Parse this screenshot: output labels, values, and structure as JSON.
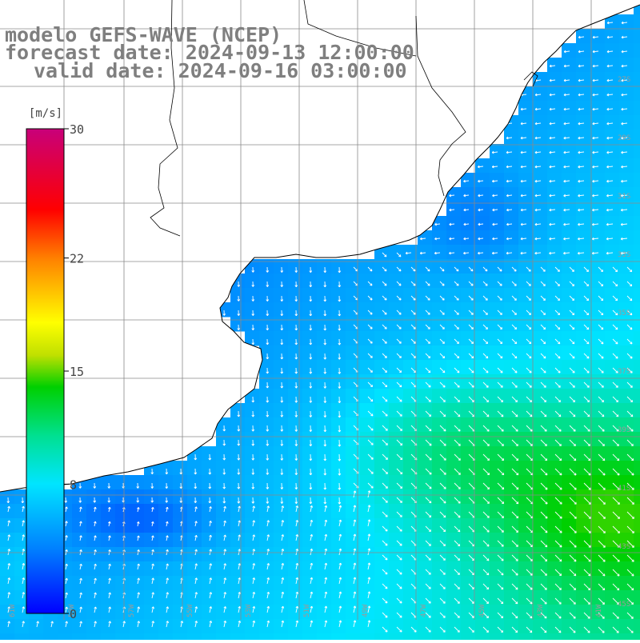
{
  "header": {
    "title": "modelo GEFS-WAVE (NCEP)",
    "forecast": "forecast date: 2024-09-13 12:00:00",
    "valid": "valid date: 2024-09-16 03:00:00"
  },
  "colorbar": {
    "unit": "[m/s]",
    "ticks": [
      {
        "label": "30",
        "value": 30
      },
      {
        "label": "22",
        "value": 22
      },
      {
        "label": "15",
        "value": 15
      },
      {
        "label": "8",
        "value": 8
      },
      {
        "label": "0",
        "value": 0
      }
    ],
    "min": 0,
    "max": 30,
    "stops": [
      {
        "v": 0,
        "c": "#0000ff"
      },
      {
        "v": 4,
        "c": "#0080ff"
      },
      {
        "v": 8,
        "c": "#00e5ff"
      },
      {
        "v": 11,
        "c": "#00e090"
      },
      {
        "v": 14,
        "c": "#00d000"
      },
      {
        "v": 16,
        "c": "#c0e000"
      },
      {
        "v": 18,
        "c": "#ffff00"
      },
      {
        "v": 22,
        "c": "#ff8000"
      },
      {
        "v": 25,
        "c": "#ff0000"
      },
      {
        "v": 30,
        "c": "#c8007a"
      }
    ]
  },
  "map": {
    "land_color": "#ffffff",
    "grid_color": "#8a8a8a",
    "coast_color": "#000000",
    "arrow_color": "#ffffff",
    "bottom_labels": [
      "61W",
      "59W",
      "57W",
      "55W",
      "53W",
      "51W",
      "49W",
      "47W",
      "45W",
      "43W",
      "41W"
    ],
    "right_labels": [
      "27S",
      "29S",
      "31S",
      "33S",
      "35S",
      "37S",
      "39S",
      "41S",
      "43S",
      "45S"
    ]
  }
}
